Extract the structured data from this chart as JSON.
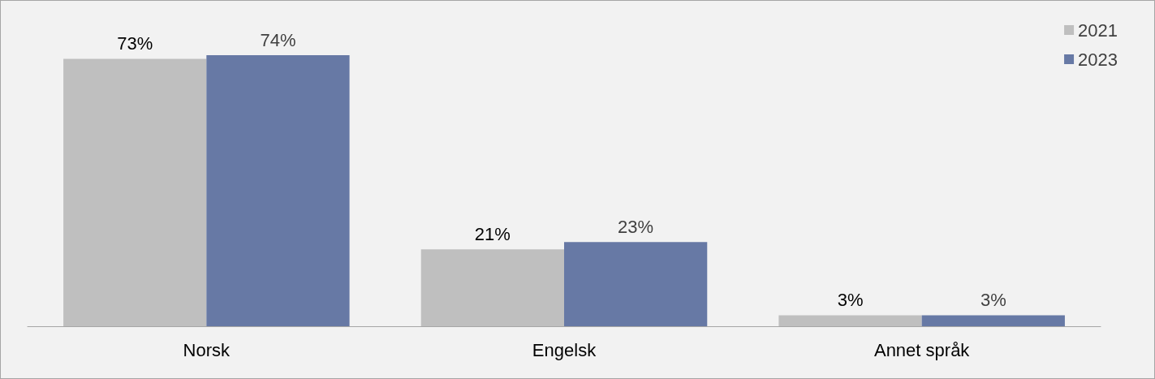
{
  "chart_data": {
    "type": "bar",
    "categories": [
      "Norsk",
      "Engelsk",
      "Annet språk"
    ],
    "series": [
      {
        "name": "2021",
        "color": "#bfbfbf",
        "values": [
          73,
          21,
          3
        ],
        "value_labels": [
          "73%",
          "21%",
          "3%"
        ]
      },
      {
        "name": "2023",
        "color": "#6779a5",
        "values": [
          74,
          23,
          3
        ],
        "value_labels": [
          "74%",
          "23%",
          "3%"
        ]
      }
    ],
    "legend": "top right"
  }
}
